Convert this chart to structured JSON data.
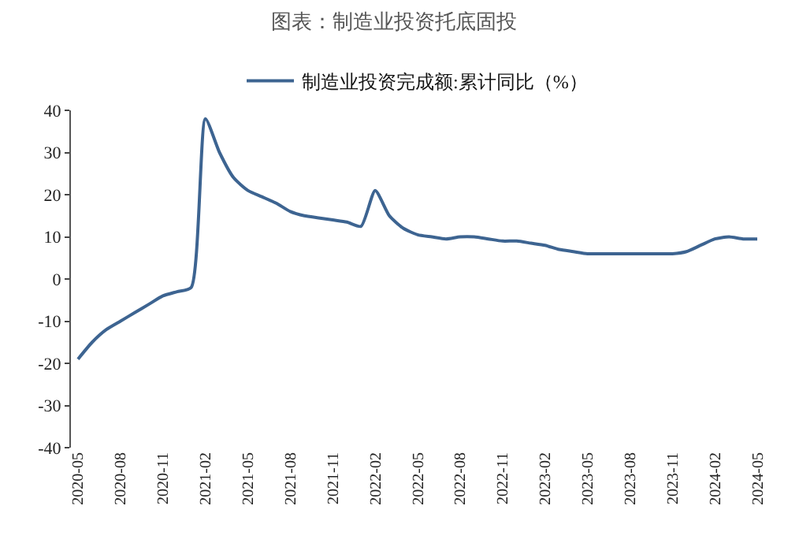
{
  "chart_data": {
    "type": "line",
    "title": "图表：制造业投资托底固投",
    "categories": [
      "2020-05",
      null,
      null,
      "2020-08",
      null,
      null,
      "2020-11",
      null,
      null,
      "2021-02",
      null,
      null,
      "2021-05",
      null,
      null,
      "2021-08",
      null,
      null,
      "2021-11",
      null,
      null,
      "2022-02",
      null,
      null,
      "2022-05",
      null,
      null,
      "2022-08",
      null,
      null,
      "2022-11",
      null,
      null,
      "2023-02",
      null,
      null,
      "2023-05",
      null,
      null,
      "2023-08",
      null,
      null,
      "2023-11",
      null,
      null,
      "2024-02",
      null,
      null,
      "2024-05"
    ],
    "series": [
      {
        "name": "制造业投资完成额:累计同比（%）",
        "color": "#3d6491",
        "values": [
          -19,
          -15,
          -12,
          -10,
          -8,
          -6,
          -4,
          -3,
          -2,
          38,
          30,
          24,
          21,
          19.5,
          18,
          16,
          15,
          14.5,
          14,
          13.5,
          12.5,
          21,
          15,
          12,
          10.5,
          10,
          9.5,
          10,
          10,
          9.5,
          9,
          9,
          8.5,
          8,
          7,
          6.5,
          6,
          6,
          6,
          6,
          6,
          6,
          6,
          6.5,
          8,
          9.5,
          10,
          9.5,
          9.5
        ]
      }
    ],
    "ylim": [
      -40,
      40
    ],
    "yticks": [
      -40,
      -30,
      -20,
      -10,
      0,
      10,
      20,
      30,
      40
    ],
    "legend": "top",
    "marker": "none",
    "line_style": "solid"
  }
}
